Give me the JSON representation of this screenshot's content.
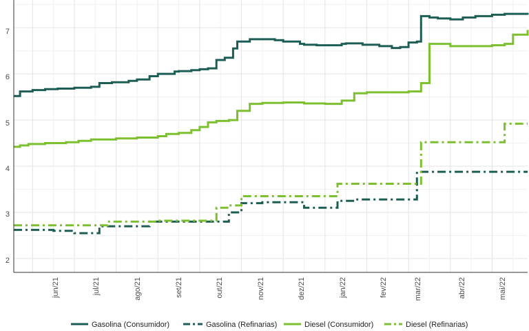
{
  "chart_data": {
    "type": "line",
    "title": "",
    "xlabel": "",
    "ylabel": "",
    "ylim": [
      1.7,
      7.6
    ],
    "y_ticks": [
      "2",
      "3",
      "4",
      "5",
      "6",
      "7"
    ],
    "x_ticks": [
      "jun/21",
      "jul/21",
      "ago/21",
      "set/21",
      "out/21",
      "nov/21",
      "dez/21",
      "jan/22",
      "fev/22",
      "mar/22",
      "abr/22",
      "mai/22"
    ],
    "x_range_months": [
      -0.45,
      11.85
    ],
    "grid": true,
    "legend_position": "bottom",
    "series": [
      {
        "name": "Gasolina (Consumidor)",
        "color": "#1d5e54",
        "dash": "solid",
        "x": [
          -0.45,
          -0.3,
          -0.3,
          0,
          0.3,
          0.6,
          1.0,
          1.4,
          1.6,
          1.9,
          2.3,
          2.5,
          2.8,
          3.0,
          3.4,
          3.5,
          3.8,
          4.0,
          4.2,
          4.4,
          4.6,
          4.8,
          4.9,
          5.2,
          5.5,
          5.8,
          6.0,
          6.4,
          6.5,
          6.8,
          7.0,
          7.4,
          7.5,
          7.9,
          8.3,
          8.6,
          8.8,
          9.0,
          9.2,
          9.3,
          9.5,
          9.7,
          10.0,
          10.3,
          10.6,
          11.0,
          11.3,
          11.85
        ],
        "y": [
          5.52,
          5.55,
          5.62,
          5.65,
          5.67,
          5.68,
          5.7,
          5.72,
          5.8,
          5.82,
          5.85,
          5.88,
          5.95,
          6.0,
          6.05,
          6.06,
          6.08,
          6.1,
          6.12,
          6.3,
          6.35,
          6.55,
          6.7,
          6.75,
          6.75,
          6.73,
          6.7,
          6.65,
          6.63,
          6.62,
          6.62,
          6.65,
          6.66,
          6.63,
          6.6,
          6.56,
          6.58,
          6.68,
          6.7,
          7.25,
          7.22,
          7.2,
          7.18,
          7.22,
          7.25,
          7.28,
          7.3,
          7.28
        ]
      },
      {
        "name": "Gasolina (Refinarias)",
        "color": "#1d5e54",
        "dash": "dashdot",
        "x": [
          -0.45,
          0.5,
          1.0,
          1.6,
          2.8,
          4.0,
          4.3,
          4.7,
          5.0,
          5.5,
          6.5,
          7.0,
          7.3,
          7.7,
          8.3,
          8.9,
          9.2,
          10.0,
          11.85
        ],
        "y": [
          2.62,
          2.6,
          2.55,
          2.7,
          2.8,
          2.8,
          2.8,
          3.0,
          3.2,
          3.22,
          3.1,
          3.1,
          3.25,
          3.28,
          3.28,
          3.28,
          3.88,
          3.88,
          3.88
        ]
      },
      {
        "name": "Diesel (Consumidor)",
        "color": "#7cbf2f",
        "dash": "solid",
        "x": [
          -0.45,
          -0.3,
          -0.1,
          0.3,
          0.8,
          1.1,
          1.4,
          2.0,
          2.5,
          3.0,
          3.2,
          3.5,
          3.8,
          4.0,
          4.2,
          4.4,
          4.7,
          4.9,
          5.2,
          5.5,
          6.0,
          6.5,
          7.0,
          7.2,
          7.4,
          7.7,
          8.0,
          8.3,
          8.7,
          9.0,
          9.3,
          9.5,
          10.0,
          10.4,
          11.0,
          11.3,
          11.5,
          11.85
        ],
        "y": [
          4.42,
          4.45,
          4.48,
          4.5,
          4.52,
          4.55,
          4.58,
          4.6,
          4.62,
          4.65,
          4.7,
          4.72,
          4.78,
          4.85,
          4.95,
          4.98,
          5.0,
          5.2,
          5.35,
          5.37,
          5.38,
          5.36,
          5.35,
          5.35,
          5.42,
          5.58,
          5.6,
          5.6,
          5.6,
          5.62,
          5.8,
          6.65,
          6.6,
          6.6,
          6.62,
          6.65,
          6.85,
          6.95
        ]
      },
      {
        "name": "Diesel (Refinarias)",
        "color": "#7cbf2f",
        "dash": "dashdot",
        "x": [
          -0.45,
          0.5,
          1.2,
          1.8,
          2.5,
          3.0,
          3.5,
          4.0,
          4.4,
          4.7,
          5.0,
          5.5,
          6.5,
          7.3,
          8.0,
          9.0,
          9.3,
          10.0,
          11.0,
          11.3,
          11.85
        ],
        "y": [
          2.72,
          2.72,
          2.72,
          2.8,
          2.8,
          2.82,
          2.82,
          2.82,
          3.1,
          3.15,
          3.35,
          3.35,
          3.35,
          3.62,
          3.62,
          3.62,
          4.52,
          4.52,
          4.52,
          4.92,
          4.92
        ]
      }
    ]
  }
}
